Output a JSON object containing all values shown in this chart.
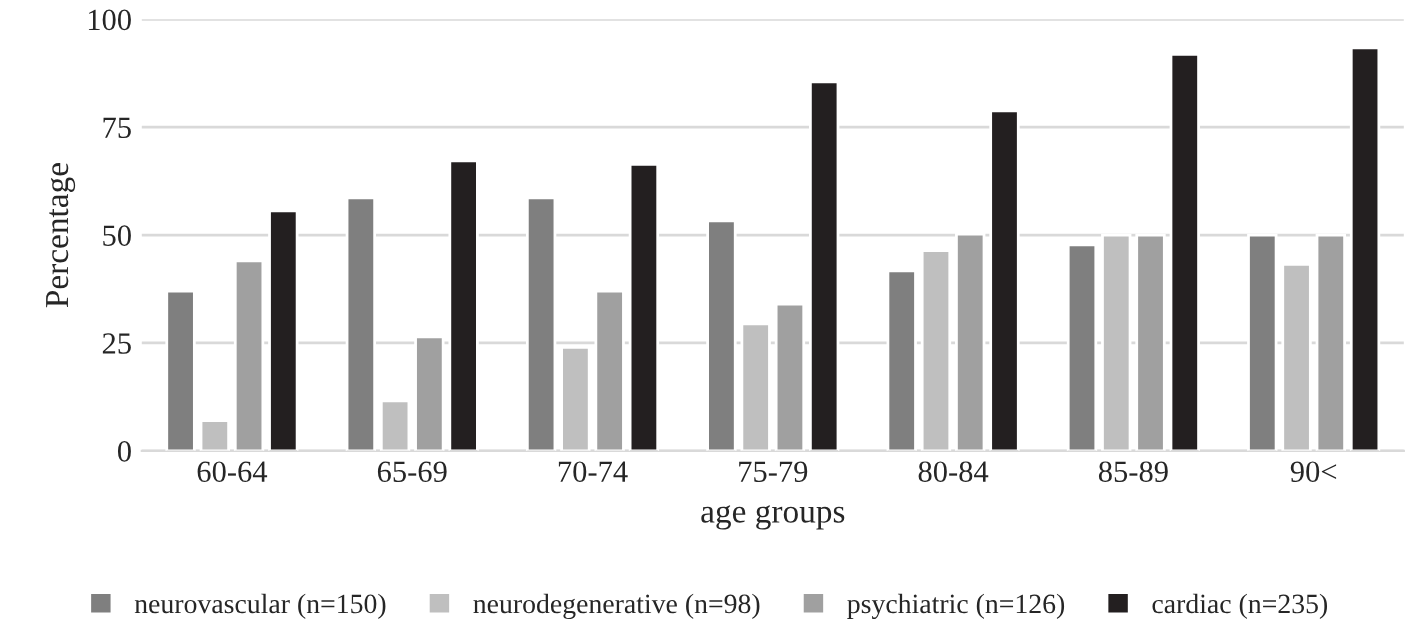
{
  "chart_data": {
    "type": "bar",
    "xlabel": "age groups",
    "ylabel": "Percentage",
    "categories": [
      "60-64",
      "65-69",
      "70-74",
      "75-79",
      "80-84",
      "85-89",
      "90<"
    ],
    "series": [
      {
        "name": "neurovascular (n=150)",
        "color": "#7f7f7f",
        "values": [
          37,
          58.6,
          58.6,
          53.3,
          41.7,
          47.7,
          50
        ]
      },
      {
        "name": "neurodegenerative (n=98)",
        "color": "#bfbfbf",
        "values": [
          7,
          11.6,
          24,
          29.4,
          46.4,
          50,
          43.2
        ]
      },
      {
        "name": "psychiatric (n=126)",
        "color": "#a0a0a0",
        "values": [
          44,
          26.4,
          37,
          34,
          50.2,
          50,
          50
        ]
      },
      {
        "name": "cardiac (n=235)",
        "color": "#231f20",
        "values": [
          55.6,
          67.2,
          66.4,
          85.5,
          78.8,
          91.9,
          93.4
        ]
      }
    ],
    "ylim": [
      0,
      100
    ],
    "yticks": [
      0,
      25,
      50,
      75,
      100
    ],
    "grid": "y",
    "legend": "bottom"
  }
}
